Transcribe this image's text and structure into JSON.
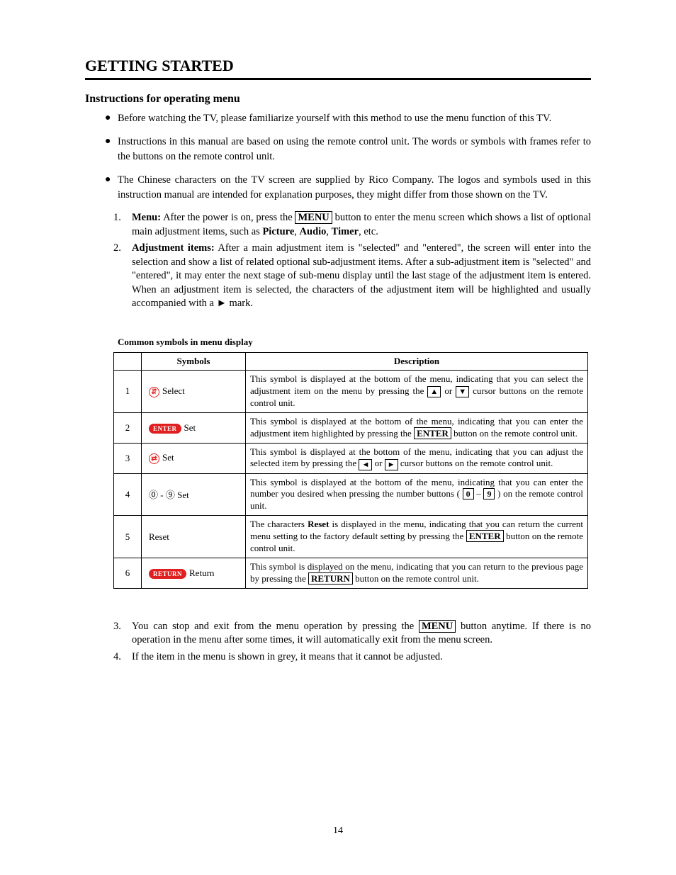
{
  "title": "GETTING STARTED",
  "subtitle": "Instructions for operating menu",
  "bullets": [
    "Before watching the TV, please familiarize yourself with this method to use the menu function of this TV.",
    "Instructions in this manual are based on using the remote control unit. The words or symbols with frames refer to the buttons on the remote control unit.",
    "The Chinese characters on the TV screen are supplied by Rico Company. The logos and symbols used in this instruction manual are intended for explanation purposes, they might differ from those shown on the TV."
  ],
  "step1": {
    "num": "1.",
    "lead": "Menu:",
    "t1": " After the power is on, press the ",
    "btn": "MENU",
    "t2": " button to enter the menu screen which shows a list of optional main adjustment items, such as ",
    "w1": "Picture",
    "c1": ", ",
    "w2": "Audio",
    "c2": ", ",
    "w3": "Timer",
    "c3": ", etc."
  },
  "step2": {
    "num": "2.",
    "lead": "Adjustment items:",
    "body": " After a main adjustment item is \"selected\" and \"entered\", the screen will enter into the selection and show a list of related optional sub-adjustment items. After a sub-adjustment item is \"selected\" and \"entered\", it may enter the next stage of sub-menu display until the last stage of the adjustment item is entered. When an adjustment item is selected, the characters of the adjustment item will be highlighted and usually accompanied with a ► mark."
  },
  "table": {
    "caption": "Common symbols in menu display",
    "headers": {
      "sym": "Symbols",
      "desc": "Description"
    },
    "rows": [
      {
        "n": "1",
        "sym_icon_type": "circle",
        "sym_icon_glyph": "⇵",
        "sym_label": "Select",
        "d1": "This symbol is displayed at the bottom of the menu, indicating that you can select the adjustment item on the menu by pressing the ",
        "a1": "▲",
        "dor": " or ",
        "a2": "▼",
        "d2": " cursor buttons on the remote control unit."
      },
      {
        "n": "2",
        "sym_icon_type": "pill",
        "sym_icon_glyph": "ENTER",
        "sym_label": "Set",
        "d1": "This symbol is displayed at the bottom of the menu, indicating that you can enter the adjustment item highlighted by pressing the ",
        "btn": "ENTER",
        "d2": " button on the remote control unit."
      },
      {
        "n": "3",
        "sym_icon_type": "circle",
        "sym_icon_glyph": "⇄",
        "sym_label": "Set",
        "d1": "This symbol is displayed at the bottom of the menu, indicating that you can adjust the selected item by pressing the ",
        "a1": "◄",
        "dor": "  or  ",
        "a2": "►",
        "d2": " cursor buttons on the remote control unit."
      },
      {
        "n": "4",
        "sym_icon_type": "numrange",
        "sym_icon_glyph": "⓪ - ⑨",
        "sym_label": "Set",
        "d1": "This symbol is displayed at the bottom of the menu, indicating that you can enter the number you desired when pressing the number buttons ( ",
        "b1": "0",
        "dash": " – ",
        "b2": "9",
        "d2": " ) on the remote control unit."
      },
      {
        "n": "5",
        "sym_icon_type": "none",
        "sym_label": "Reset",
        "d0": "The characters ",
        "bold": "Reset",
        "d1": " is displayed in the menu, indicating that you can return the current menu setting to the factory default setting by pressing the ",
        "btn": "ENTER",
        "d2": " button on the remote control unit."
      },
      {
        "n": "6",
        "sym_icon_type": "pill",
        "sym_icon_glyph": "RETURN",
        "sym_label": "Return",
        "d1": "This symbol is displayed on the menu, indicating that you can return to the previous page by pressing the ",
        "btn": "RETURN",
        "d2": " button on the remote control unit."
      }
    ]
  },
  "step3": {
    "num": "3.",
    "t1": "You can stop and exit from the menu operation by pressing the ",
    "btn": "MENU",
    "t2": " button anytime. If there is no operation in the menu after some times, it will automatically exit from the menu screen."
  },
  "step4": {
    "num": "4.",
    "body": "If the item in the menu is shown in grey, it means that it cannot be adjusted."
  },
  "page_number": "14",
  "colors": {
    "accent_red": "#e02020",
    "text": "#000000",
    "bg": "#ffffff"
  }
}
